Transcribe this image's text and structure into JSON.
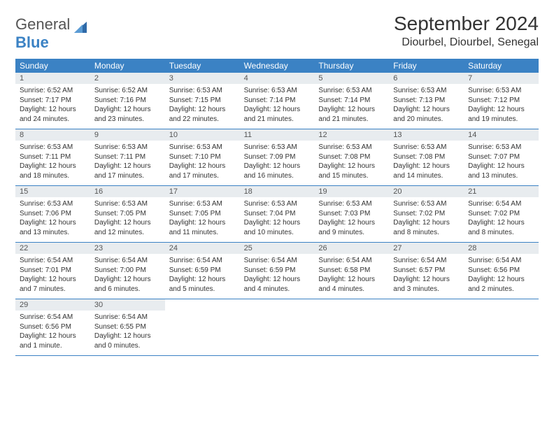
{
  "brand": {
    "part1": "General",
    "part2": "Blue"
  },
  "title": "September 2024",
  "location": "Diourbel, Diourbel, Senegal",
  "colors": {
    "header_bg": "#3b82c4",
    "daynum_bg": "#e8ecef",
    "text": "#333333",
    "border": "#3b82c4"
  },
  "weekdays": [
    "Sunday",
    "Monday",
    "Tuesday",
    "Wednesday",
    "Thursday",
    "Friday",
    "Saturday"
  ],
  "weeks": [
    [
      {
        "n": "1",
        "sr": "Sunrise: 6:52 AM",
        "ss": "Sunset: 7:17 PM",
        "dl": "Daylight: 12 hours and 24 minutes."
      },
      {
        "n": "2",
        "sr": "Sunrise: 6:52 AM",
        "ss": "Sunset: 7:16 PM",
        "dl": "Daylight: 12 hours and 23 minutes."
      },
      {
        "n": "3",
        "sr": "Sunrise: 6:53 AM",
        "ss": "Sunset: 7:15 PM",
        "dl": "Daylight: 12 hours and 22 minutes."
      },
      {
        "n": "4",
        "sr": "Sunrise: 6:53 AM",
        "ss": "Sunset: 7:14 PM",
        "dl": "Daylight: 12 hours and 21 minutes."
      },
      {
        "n": "5",
        "sr": "Sunrise: 6:53 AM",
        "ss": "Sunset: 7:14 PM",
        "dl": "Daylight: 12 hours and 21 minutes."
      },
      {
        "n": "6",
        "sr": "Sunrise: 6:53 AM",
        "ss": "Sunset: 7:13 PM",
        "dl": "Daylight: 12 hours and 20 minutes."
      },
      {
        "n": "7",
        "sr": "Sunrise: 6:53 AM",
        "ss": "Sunset: 7:12 PM",
        "dl": "Daylight: 12 hours and 19 minutes."
      }
    ],
    [
      {
        "n": "8",
        "sr": "Sunrise: 6:53 AM",
        "ss": "Sunset: 7:11 PM",
        "dl": "Daylight: 12 hours and 18 minutes."
      },
      {
        "n": "9",
        "sr": "Sunrise: 6:53 AM",
        "ss": "Sunset: 7:11 PM",
        "dl": "Daylight: 12 hours and 17 minutes."
      },
      {
        "n": "10",
        "sr": "Sunrise: 6:53 AM",
        "ss": "Sunset: 7:10 PM",
        "dl": "Daylight: 12 hours and 17 minutes."
      },
      {
        "n": "11",
        "sr": "Sunrise: 6:53 AM",
        "ss": "Sunset: 7:09 PM",
        "dl": "Daylight: 12 hours and 16 minutes."
      },
      {
        "n": "12",
        "sr": "Sunrise: 6:53 AM",
        "ss": "Sunset: 7:08 PM",
        "dl": "Daylight: 12 hours and 15 minutes."
      },
      {
        "n": "13",
        "sr": "Sunrise: 6:53 AM",
        "ss": "Sunset: 7:08 PM",
        "dl": "Daylight: 12 hours and 14 minutes."
      },
      {
        "n": "14",
        "sr": "Sunrise: 6:53 AM",
        "ss": "Sunset: 7:07 PM",
        "dl": "Daylight: 12 hours and 13 minutes."
      }
    ],
    [
      {
        "n": "15",
        "sr": "Sunrise: 6:53 AM",
        "ss": "Sunset: 7:06 PM",
        "dl": "Daylight: 12 hours and 13 minutes."
      },
      {
        "n": "16",
        "sr": "Sunrise: 6:53 AM",
        "ss": "Sunset: 7:05 PM",
        "dl": "Daylight: 12 hours and 12 minutes."
      },
      {
        "n": "17",
        "sr": "Sunrise: 6:53 AM",
        "ss": "Sunset: 7:05 PM",
        "dl": "Daylight: 12 hours and 11 minutes."
      },
      {
        "n": "18",
        "sr": "Sunrise: 6:53 AM",
        "ss": "Sunset: 7:04 PM",
        "dl": "Daylight: 12 hours and 10 minutes."
      },
      {
        "n": "19",
        "sr": "Sunrise: 6:53 AM",
        "ss": "Sunset: 7:03 PM",
        "dl": "Daylight: 12 hours and 9 minutes."
      },
      {
        "n": "20",
        "sr": "Sunrise: 6:53 AM",
        "ss": "Sunset: 7:02 PM",
        "dl": "Daylight: 12 hours and 8 minutes."
      },
      {
        "n": "21",
        "sr": "Sunrise: 6:54 AM",
        "ss": "Sunset: 7:02 PM",
        "dl": "Daylight: 12 hours and 8 minutes."
      }
    ],
    [
      {
        "n": "22",
        "sr": "Sunrise: 6:54 AM",
        "ss": "Sunset: 7:01 PM",
        "dl": "Daylight: 12 hours and 7 minutes."
      },
      {
        "n": "23",
        "sr": "Sunrise: 6:54 AM",
        "ss": "Sunset: 7:00 PM",
        "dl": "Daylight: 12 hours and 6 minutes."
      },
      {
        "n": "24",
        "sr": "Sunrise: 6:54 AM",
        "ss": "Sunset: 6:59 PM",
        "dl": "Daylight: 12 hours and 5 minutes."
      },
      {
        "n": "25",
        "sr": "Sunrise: 6:54 AM",
        "ss": "Sunset: 6:59 PM",
        "dl": "Daylight: 12 hours and 4 minutes."
      },
      {
        "n": "26",
        "sr": "Sunrise: 6:54 AM",
        "ss": "Sunset: 6:58 PM",
        "dl": "Daylight: 12 hours and 4 minutes."
      },
      {
        "n": "27",
        "sr": "Sunrise: 6:54 AM",
        "ss": "Sunset: 6:57 PM",
        "dl": "Daylight: 12 hours and 3 minutes."
      },
      {
        "n": "28",
        "sr": "Sunrise: 6:54 AM",
        "ss": "Sunset: 6:56 PM",
        "dl": "Daylight: 12 hours and 2 minutes."
      }
    ],
    [
      {
        "n": "29",
        "sr": "Sunrise: 6:54 AM",
        "ss": "Sunset: 6:56 PM",
        "dl": "Daylight: 12 hours and 1 minute."
      },
      {
        "n": "30",
        "sr": "Sunrise: 6:54 AM",
        "ss": "Sunset: 6:55 PM",
        "dl": "Daylight: 12 hours and 0 minutes."
      },
      null,
      null,
      null,
      null,
      null
    ]
  ]
}
